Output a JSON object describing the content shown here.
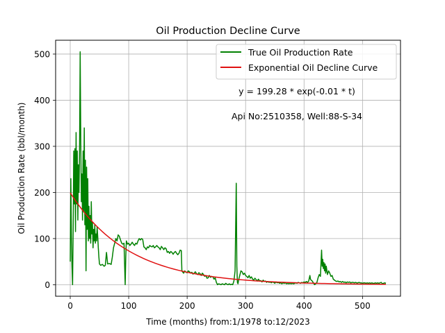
{
  "chart_data": {
    "type": "line",
    "title": "Oil Production Decline Curve",
    "xlabel": "Time (months) from:1/1978 to:12/2023",
    "ylabel": "Oil Production Rate (bbl/month)",
    "xlim": [
      -25,
      565
    ],
    "ylim": [
      -25,
      530
    ],
    "xticks": [
      0,
      100,
      200,
      300,
      400,
      500
    ],
    "yticks": [
      0,
      100,
      200,
      300,
      400,
      500
    ],
    "grid": true,
    "legend_position": "top-right",
    "annotations": [
      "y = 199.28 * exp(-0.01 * t)",
      "Api No:2510358, Well:88-S-34"
    ],
    "series": [
      {
        "name": "True Oil Production Rate",
        "color": "#008000",
        "points": [
          [
            0,
            50
          ],
          [
            1,
            230
          ],
          [
            2,
            100
          ],
          [
            3,
            40
          ],
          [
            4,
            0
          ],
          [
            5,
            120
          ],
          [
            6,
            290
          ],
          [
            7,
            175
          ],
          [
            8,
            295
          ],
          [
            9,
            115
          ],
          [
            10,
            330
          ],
          [
            11,
            175
          ],
          [
            12,
            290
          ],
          [
            13,
            140
          ],
          [
            14,
            260
          ],
          [
            15,
            200
          ],
          [
            16,
            300
          ],
          [
            17,
            505
          ],
          [
            18,
            310
          ],
          [
            19,
            180
          ],
          [
            20,
            240
          ],
          [
            21,
            140
          ],
          [
            22,
            290
          ],
          [
            23,
            160
          ],
          [
            24,
            340
          ],
          [
            25,
            130
          ],
          [
            26,
            270
          ],
          [
            27,
            30
          ],
          [
            28,
            255
          ],
          [
            29,
            120
          ],
          [
            30,
            230
          ],
          [
            31,
            95
          ],
          [
            32,
            170
          ],
          [
            33,
            100
          ],
          [
            34,
            150
          ],
          [
            35,
            90
          ],
          [
            36,
            180
          ],
          [
            37,
            110
          ],
          [
            38,
            135
          ],
          [
            39,
            80
          ],
          [
            40,
            120
          ],
          [
            41,
            95
          ],
          [
            42,
            130
          ],
          [
            43,
            90
          ],
          [
            44,
            110
          ],
          [
            45,
            95
          ],
          [
            46,
            125
          ],
          [
            47,
            105
          ],
          [
            48,
            80
          ],
          [
            49,
            60
          ],
          [
            50,
            45
          ],
          [
            52,
            42
          ],
          [
            55,
            44
          ],
          [
            58,
            40
          ],
          [
            60,
            42
          ],
          [
            62,
            70
          ],
          [
            64,
            45
          ],
          [
            67,
            46
          ],
          [
            70,
            44
          ],
          [
            72,
            60
          ],
          [
            74,
            80
          ],
          [
            76,
            90
          ],
          [
            78,
            100
          ],
          [
            80,
            95
          ],
          [
            82,
            108
          ],
          [
            84,
            105
          ],
          [
            86,
            97
          ],
          [
            88,
            90
          ],
          [
            90,
            88
          ],
          [
            92,
            90
          ],
          [
            94,
            0
          ],
          [
            95,
            60
          ],
          [
            96,
            95
          ],
          [
            98,
            88
          ],
          [
            100,
            90
          ],
          [
            102,
            85
          ],
          [
            104,
            88
          ],
          [
            106,
            92
          ],
          [
            108,
            88
          ],
          [
            110,
            85
          ],
          [
            112,
            90
          ],
          [
            114,
            88
          ],
          [
            116,
            95
          ],
          [
            118,
            100
          ],
          [
            120,
            97
          ],
          [
            122,
            100
          ],
          [
            124,
            98
          ],
          [
            126,
            82
          ],
          [
            128,
            80
          ],
          [
            130,
            76
          ],
          [
            132,
            82
          ],
          [
            134,
            80
          ],
          [
            136,
            85
          ],
          [
            138,
            83
          ],
          [
            140,
            82
          ],
          [
            142,
            85
          ],
          [
            144,
            80
          ],
          [
            146,
            82
          ],
          [
            148,
            85
          ],
          [
            150,
            82
          ],
          [
            152,
            80
          ],
          [
            154,
            76
          ],
          [
            156,
            83
          ],
          [
            158,
            80
          ],
          [
            160,
            76
          ],
          [
            162,
            80
          ],
          [
            164,
            78
          ],
          [
            166,
            70
          ],
          [
            168,
            72
          ],
          [
            170,
            68
          ],
          [
            172,
            72
          ],
          [
            174,
            70
          ],
          [
            176,
            66
          ],
          [
            178,
            70
          ],
          [
            180,
            72
          ],
          [
            182,
            68
          ],
          [
            184,
            65
          ],
          [
            186,
            68
          ],
          [
            188,
            75
          ],
          [
            190,
            74
          ],
          [
            191,
            30
          ],
          [
            192,
            28
          ],
          [
            194,
            25
          ],
          [
            196,
            30
          ],
          [
            198,
            27
          ],
          [
            200,
            26
          ],
          [
            202,
            30
          ],
          [
            204,
            28
          ],
          [
            206,
            25
          ],
          [
            208,
            27
          ],
          [
            210,
            23
          ],
          [
            212,
            25
          ],
          [
            214,
            28
          ],
          [
            216,
            24
          ],
          [
            218,
            22
          ],
          [
            220,
            26
          ],
          [
            222,
            24
          ],
          [
            224,
            20
          ],
          [
            226,
            25
          ],
          [
            228,
            22
          ],
          [
            230,
            18
          ],
          [
            232,
            20
          ],
          [
            234,
            14
          ],
          [
            236,
            15
          ],
          [
            238,
            20
          ],
          [
            240,
            16
          ],
          [
            242,
            18
          ],
          [
            244,
            17
          ],
          [
            246,
            12
          ],
          [
            248,
            15
          ],
          [
            250,
            5
          ],
          [
            252,
            0
          ],
          [
            254,
            2
          ],
          [
            256,
            1
          ],
          [
            258,
            0
          ],
          [
            260,
            2
          ],
          [
            262,
            1
          ],
          [
            264,
            0
          ],
          [
            266,
            3
          ],
          [
            268,
            1
          ],
          [
            270,
            0
          ],
          [
            272,
            2
          ],
          [
            274,
            0
          ],
          [
            276,
            1
          ],
          [
            278,
            0
          ],
          [
            280,
            8
          ],
          [
            282,
            30
          ],
          [
            284,
            220
          ],
          [
            285,
            40
          ],
          [
            286,
            5
          ],
          [
            287,
            2
          ],
          [
            288,
            10
          ],
          [
            290,
            20
          ],
          [
            292,
            30
          ],
          [
            294,
            28
          ],
          [
            296,
            22
          ],
          [
            298,
            25
          ],
          [
            300,
            20
          ],
          [
            302,
            18
          ],
          [
            304,
            15
          ],
          [
            306,
            20
          ],
          [
            308,
            14
          ],
          [
            310,
            17
          ],
          [
            312,
            12
          ],
          [
            314,
            10
          ],
          [
            316,
            14
          ],
          [
            318,
            11
          ],
          [
            320,
            8
          ],
          [
            322,
            12
          ],
          [
            324,
            8
          ],
          [
            326,
            9
          ],
          [
            328,
            6
          ],
          [
            330,
            10
          ],
          [
            332,
            7
          ],
          [
            334,
            8
          ],
          [
            336,
            5
          ],
          [
            338,
            7
          ],
          [
            340,
            5
          ],
          [
            342,
            6
          ],
          [
            344,
            4
          ],
          [
            346,
            6
          ],
          [
            348,
            5
          ],
          [
            350,
            3
          ],
          [
            352,
            6
          ],
          [
            354,
            4
          ],
          [
            356,
            5
          ],
          [
            358,
            3
          ],
          [
            360,
            4
          ],
          [
            362,
            2
          ],
          [
            364,
            4
          ],
          [
            366,
            3
          ],
          [
            368,
            4
          ],
          [
            370,
            2
          ],
          [
            372,
            3
          ],
          [
            374,
            2
          ],
          [
            376,
            3
          ],
          [
            378,
            2
          ],
          [
            380,
            3
          ],
          [
            382,
            2
          ],
          [
            384,
            3
          ],
          [
            386,
            4
          ],
          [
            388,
            3
          ],
          [
            390,
            5
          ],
          [
            392,
            4
          ],
          [
            394,
            3
          ],
          [
            396,
            5
          ],
          [
            398,
            4
          ],
          [
            400,
            6
          ],
          [
            402,
            5
          ],
          [
            404,
            7
          ],
          [
            406,
            5
          ],
          [
            408,
            8
          ],
          [
            410,
            20
          ],
          [
            411,
            12
          ],
          [
            412,
            10
          ],
          [
            414,
            8
          ],
          [
            416,
            4
          ],
          [
            418,
            0
          ],
          [
            420,
            2
          ],
          [
            422,
            5
          ],
          [
            424,
            15
          ],
          [
            426,
            22
          ],
          [
            428,
            18
          ],
          [
            430,
            75
          ],
          [
            431,
            40
          ],
          [
            432,
            55
          ],
          [
            433,
            35
          ],
          [
            434,
            48
          ],
          [
            435,
            30
          ],
          [
            436,
            45
          ],
          [
            437,
            25
          ],
          [
            438,
            40
          ],
          [
            440,
            22
          ],
          [
            442,
            30
          ],
          [
            444,
            25
          ],
          [
            446,
            18
          ],
          [
            448,
            20
          ],
          [
            450,
            12
          ],
          [
            452,
            10
          ],
          [
            454,
            8
          ],
          [
            456,
            7
          ],
          [
            458,
            8
          ],
          [
            460,
            6
          ],
          [
            462,
            7
          ],
          [
            464,
            5
          ],
          [
            466,
            7
          ],
          [
            468,
            5
          ],
          [
            470,
            6
          ],
          [
            472,
            4
          ],
          [
            474,
            6
          ],
          [
            476,
            5
          ],
          [
            478,
            6
          ],
          [
            480,
            4
          ],
          [
            482,
            5
          ],
          [
            484,
            5
          ],
          [
            486,
            4
          ],
          [
            488,
            5
          ],
          [
            490,
            4
          ],
          [
            492,
            4
          ],
          [
            494,
            5
          ],
          [
            496,
            4
          ],
          [
            498,
            4
          ],
          [
            500,
            3
          ],
          [
            502,
            4
          ],
          [
            504,
            4
          ],
          [
            506,
            3
          ],
          [
            508,
            4
          ],
          [
            510,
            3
          ],
          [
            512,
            4
          ],
          [
            514,
            3
          ],
          [
            516,
            4
          ],
          [
            518,
            3
          ],
          [
            520,
            3
          ],
          [
            522,
            4
          ],
          [
            524,
            3
          ],
          [
            526,
            4
          ],
          [
            528,
            3
          ],
          [
            530,
            4
          ],
          [
            532,
            5
          ],
          [
            534,
            2
          ],
          [
            536,
            3
          ],
          [
            538,
            4
          ],
          [
            540,
            3
          ]
        ]
      },
      {
        "name": "Exponential Oil Decline Curve",
        "color": "#e01010",
        "formula": {
          "a": 199.28,
          "b": 0.01,
          "t_start": 0,
          "t_end": 540
        }
      }
    ]
  }
}
